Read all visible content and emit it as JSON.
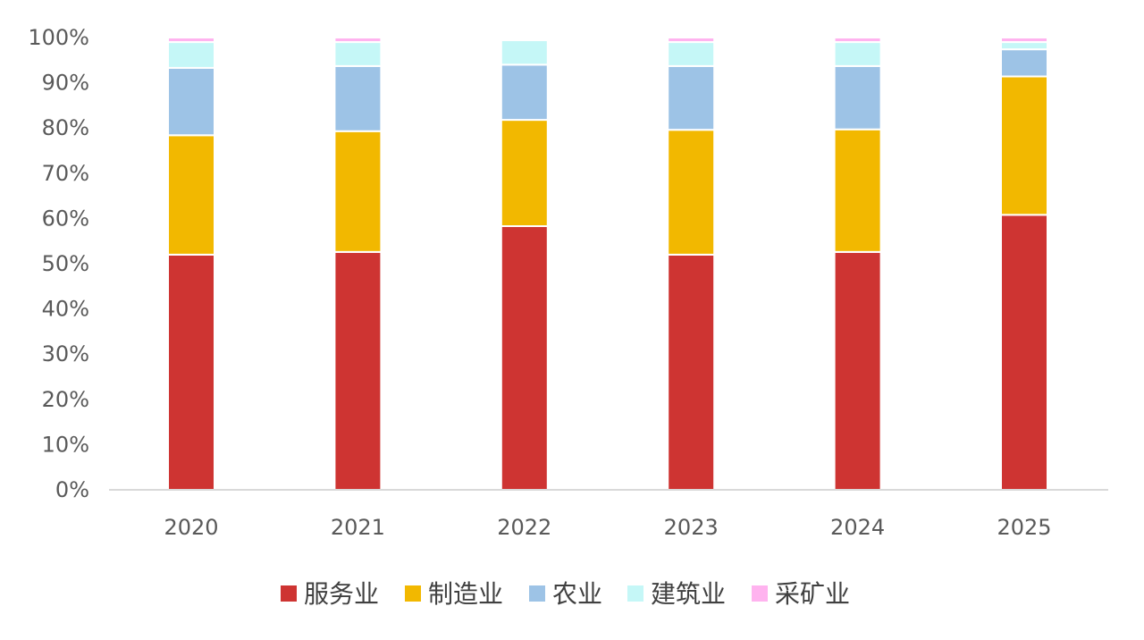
{
  "chart_data": {
    "type": "bar",
    "stacked": true,
    "categories": [
      "2020",
      "2021",
      "2022",
      "2023",
      "2024",
      "2025"
    ],
    "series": [
      {
        "name": "服务业",
        "color": "#CE3432",
        "values": [
          52.0,
          52.6,
          58.3,
          52.0,
          52.6,
          60.8
        ]
      },
      {
        "name": "制造业",
        "color": "#F2B800",
        "values": [
          26.4,
          26.7,
          23.5,
          27.6,
          27.1,
          30.6
        ]
      },
      {
        "name": "农业",
        "color": "#9DC3E6",
        "values": [
          14.9,
          14.4,
          12.2,
          14.1,
          14.0,
          6.0
        ]
      },
      {
        "name": "建筑业",
        "color": "#C5F7F7",
        "values": [
          5.7,
          5.3,
          5.4,
          5.3,
          5.3,
          1.6
        ]
      },
      {
        "name": "采矿业",
        "color": "#FFB3EF",
        "values": [
          1.0,
          1.0,
          0.0,
          1.0,
          1.0,
          1.0
        ]
      }
    ],
    "yticks": [
      "0%",
      "10%",
      "20%",
      "30%",
      "40%",
      "50%",
      "60%",
      "70%",
      "80%",
      "90%",
      "100%"
    ],
    "ylim": [
      0,
      100
    ],
    "grid": false,
    "legend_position": "bottom"
  }
}
